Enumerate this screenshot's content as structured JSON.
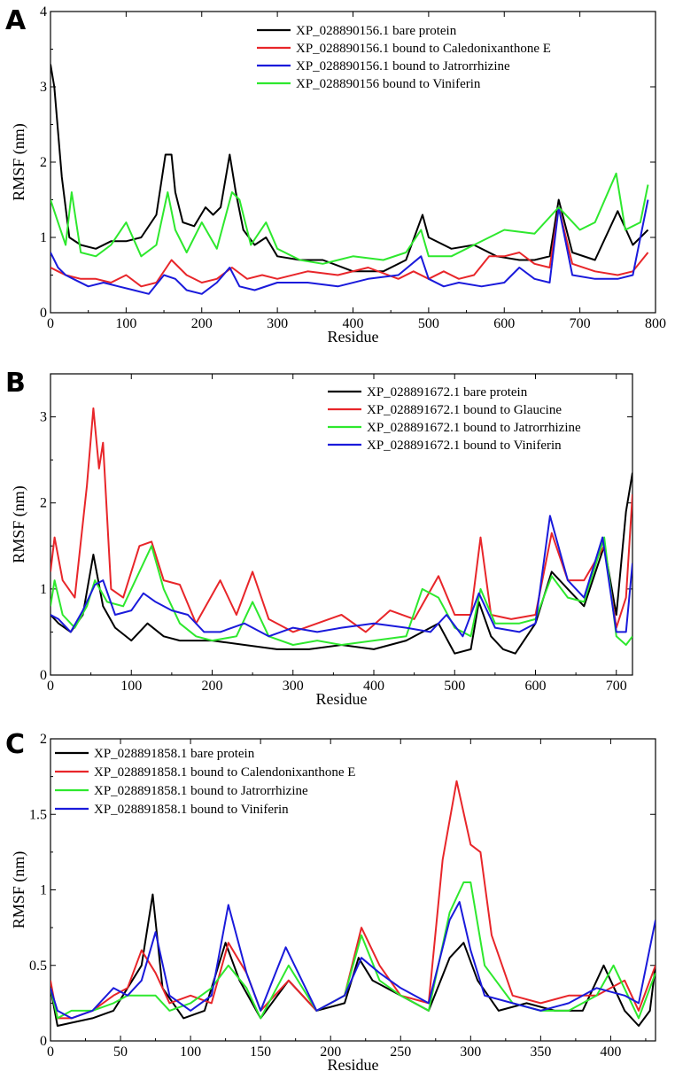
{
  "figure": {
    "x_axis_label": "Residue",
    "y_axis_label": "RMSF (nm)"
  },
  "chart_data": [
    {
      "panel_label": "A",
      "type": "line",
      "title": "",
      "xlabel": "Residue",
      "ylabel": "RMSF (nm)",
      "xlim": [
        0,
        800
      ],
      "ylim": [
        0,
        4
      ],
      "x_ticks": [
        "0",
        "100",
        "200",
        "300",
        "400",
        "500",
        "600",
        "700",
        "800"
      ],
      "y_ticks": [
        "0",
        "1",
        "2",
        "3",
        "4"
      ],
      "x_tick_values": [
        0,
        100,
        200,
        300,
        400,
        500,
        600,
        700,
        800
      ],
      "y_tick_values": [
        0,
        1,
        2,
        3,
        4
      ],
      "legend_position": "top-right",
      "series": [
        {
          "name": "XP_028890156.1 bare protein",
          "color": "#000000",
          "x": [
            0,
            5,
            15,
            25,
            40,
            60,
            80,
            100,
            120,
            140,
            152,
            160,
            165,
            175,
            190,
            205,
            215,
            225,
            237,
            245,
            255,
            270,
            285,
            300,
            330,
            360,
            400,
            440,
            470,
            492,
            500,
            530,
            560,
            590,
            620,
            640,
            660,
            672,
            690,
            720,
            750,
            770,
            790
          ],
          "values": [
            3.3,
            3.0,
            1.8,
            1.0,
            0.9,
            0.85,
            0.95,
            0.95,
            1.0,
            1.3,
            2.1,
            2.1,
            1.6,
            1.2,
            1.15,
            1.4,
            1.3,
            1.4,
            2.1,
            1.6,
            1.1,
            0.9,
            1.0,
            0.75,
            0.7,
            0.7,
            0.55,
            0.55,
            0.7,
            1.3,
            1.0,
            0.85,
            0.9,
            0.75,
            0.7,
            0.7,
            0.75,
            1.5,
            0.8,
            0.7,
            1.35,
            0.9,
            1.1
          ]
        },
        {
          "name": "XP_028890156.1 bound to Caledonixanthone E",
          "color": "#e8262a",
          "x": [
            0,
            10,
            20,
            40,
            60,
            80,
            100,
            120,
            140,
            160,
            180,
            200,
            220,
            240,
            260,
            280,
            300,
            340,
            380,
            420,
            460,
            480,
            500,
            520,
            540,
            560,
            580,
            600,
            620,
            640,
            660,
            672,
            690,
            720,
            750,
            770,
            790
          ],
          "values": [
            0.6,
            0.55,
            0.5,
            0.45,
            0.45,
            0.4,
            0.5,
            0.35,
            0.4,
            0.7,
            0.5,
            0.4,
            0.45,
            0.6,
            0.45,
            0.5,
            0.45,
            0.55,
            0.5,
            0.6,
            0.45,
            0.55,
            0.45,
            0.55,
            0.45,
            0.5,
            0.75,
            0.75,
            0.8,
            0.65,
            0.6,
            1.4,
            0.65,
            0.55,
            0.5,
            0.55,
            0.8
          ]
        },
        {
          "name": "XP_028890156.1 bound to Jatrorrhizine",
          "color": "#1a1adb",
          "x": [
            0,
            10,
            20,
            30,
            50,
            70,
            90,
            110,
            130,
            150,
            165,
            180,
            200,
            220,
            237,
            250,
            270,
            300,
            340,
            380,
            420,
            460,
            490,
            500,
            520,
            540,
            570,
            600,
            620,
            640,
            660,
            672,
            690,
            720,
            750,
            770,
            790
          ],
          "values": [
            0.8,
            0.6,
            0.5,
            0.45,
            0.35,
            0.4,
            0.35,
            0.3,
            0.25,
            0.5,
            0.45,
            0.3,
            0.25,
            0.4,
            0.6,
            0.35,
            0.3,
            0.4,
            0.4,
            0.35,
            0.45,
            0.5,
            0.75,
            0.45,
            0.35,
            0.4,
            0.35,
            0.4,
            0.6,
            0.45,
            0.4,
            1.4,
            0.5,
            0.45,
            0.45,
            0.5,
            1.5
          ]
        },
        {
          "name": "XP_028890156 bound to Viniferin",
          "color": "#2ee82e",
          "x": [
            0,
            10,
            20,
            28,
            40,
            60,
            80,
            100,
            120,
            140,
            155,
            165,
            180,
            200,
            220,
            240,
            250,
            265,
            285,
            300,
            330,
            360,
            400,
            440,
            470,
            490,
            500,
            530,
            560,
            600,
            640,
            672,
            700,
            720,
            748,
            760,
            780,
            790
          ],
          "values": [
            1.5,
            1.2,
            0.9,
            1.6,
            0.8,
            0.75,
            0.9,
            1.2,
            0.75,
            0.9,
            1.6,
            1.1,
            0.8,
            1.2,
            0.85,
            1.6,
            1.5,
            0.9,
            1.2,
            0.85,
            0.7,
            0.65,
            0.75,
            0.7,
            0.8,
            1.1,
            0.75,
            0.75,
            0.9,
            1.1,
            1.05,
            1.4,
            1.1,
            1.2,
            1.85,
            1.1,
            1.2,
            1.7
          ]
        }
      ]
    },
    {
      "panel_label": "B",
      "type": "line",
      "title": "",
      "xlabel": "Residue",
      "ylabel": "RMSF (nm)",
      "xlim": [
        0,
        720
      ],
      "ylim": [
        0,
        3.5
      ],
      "x_ticks": [
        "0",
        "100",
        "200",
        "300",
        "400",
        "500",
        "600",
        "700"
      ],
      "y_ticks": [
        "0",
        "1",
        "2",
        "3"
      ],
      "x_tick_values": [
        0,
        100,
        200,
        300,
        400,
        500,
        600,
        700
      ],
      "y_tick_values": [
        0,
        1,
        2,
        3
      ],
      "legend_position": "top-right",
      "series": [
        {
          "name": "XP_028891672.1 bare protein",
          "color": "#000000",
          "x": [
            0,
            10,
            25,
            40,
            53,
            65,
            80,
            100,
            120,
            140,
            160,
            200,
            240,
            280,
            320,
            360,
            400,
            440,
            480,
            500,
            520,
            530,
            545,
            560,
            575,
            600,
            620,
            640,
            660,
            685,
            700,
            712,
            720
          ],
          "values": [
            0.7,
            0.6,
            0.5,
            0.7,
            1.4,
            0.8,
            0.55,
            0.4,
            0.6,
            0.45,
            0.4,
            0.4,
            0.35,
            0.3,
            0.3,
            0.35,
            0.3,
            0.4,
            0.6,
            0.25,
            0.3,
            0.85,
            0.45,
            0.3,
            0.25,
            0.6,
            1.2,
            1.0,
            0.8,
            1.5,
            0.7,
            1.9,
            2.35
          ]
        },
        {
          "name": "XP_028891672.1 bound to Glaucine",
          "color": "#e8262a",
          "x": [
            0,
            5,
            15,
            30,
            45,
            53,
            60,
            65,
            75,
            90,
            110,
            125,
            140,
            160,
            180,
            210,
            230,
            250,
            270,
            300,
            330,
            360,
            390,
            420,
            450,
            480,
            500,
            520,
            532,
            545,
            570,
            600,
            620,
            640,
            660,
            685,
            700,
            712,
            720
          ],
          "values": [
            1.2,
            1.6,
            1.1,
            0.9,
            2.2,
            3.1,
            2.4,
            2.7,
            1.0,
            0.9,
            1.5,
            1.55,
            1.1,
            1.05,
            0.6,
            1.1,
            0.7,
            1.2,
            0.65,
            0.5,
            0.6,
            0.7,
            0.5,
            0.75,
            0.65,
            1.15,
            0.7,
            0.7,
            1.6,
            0.7,
            0.65,
            0.7,
            1.65,
            1.1,
            1.1,
            1.5,
            0.55,
            0.9,
            2.1
          ]
        },
        {
          "name": "XP_028891672.1 bound to Jatrorrhizine",
          "color": "#2ee82e",
          "x": [
            0,
            5,
            15,
            30,
            45,
            55,
            70,
            90,
            110,
            125,
            140,
            160,
            180,
            200,
            230,
            250,
            270,
            300,
            330,
            360,
            400,
            440,
            460,
            480,
            500,
            520,
            532,
            550,
            580,
            600,
            620,
            640,
            660,
            685,
            700,
            712,
            720
          ],
          "values": [
            0.8,
            1.1,
            0.7,
            0.55,
            0.8,
            1.1,
            0.85,
            0.8,
            1.2,
            1.5,
            1.0,
            0.6,
            0.45,
            0.4,
            0.45,
            0.85,
            0.45,
            0.35,
            0.4,
            0.35,
            0.4,
            0.45,
            1.0,
            0.9,
            0.55,
            0.45,
            1.0,
            0.6,
            0.6,
            0.65,
            1.15,
            0.9,
            0.85,
            1.6,
            0.45,
            0.35,
            0.45
          ]
        },
        {
          "name": "XP_028891672.1 bound to Viniferin",
          "color": "#1a1adb",
          "x": [
            0,
            10,
            25,
            40,
            55,
            65,
            80,
            100,
            115,
            130,
            150,
            170,
            190,
            210,
            240,
            270,
            300,
            330,
            360,
            400,
            440,
            470,
            490,
            510,
            530,
            550,
            580,
            600,
            618,
            640,
            660,
            683,
            700,
            712,
            720
          ],
          "values": [
            0.7,
            0.65,
            0.5,
            0.75,
            1.05,
            1.1,
            0.7,
            0.75,
            0.95,
            0.85,
            0.75,
            0.7,
            0.5,
            0.5,
            0.6,
            0.45,
            0.55,
            0.5,
            0.55,
            0.6,
            0.55,
            0.5,
            0.7,
            0.45,
            0.95,
            0.55,
            0.5,
            0.6,
            1.85,
            1.1,
            0.9,
            1.6,
            0.5,
            0.5,
            1.3
          ]
        }
      ]
    },
    {
      "panel_label": "C",
      "type": "line",
      "title": "",
      "xlabel": "Residue",
      "ylabel": "RMSF (nm)",
      "xlim": [
        0,
        432
      ],
      "ylim": [
        0,
        2
      ],
      "x_ticks": [
        "0",
        "50",
        "100",
        "150",
        "200",
        "250",
        "300",
        "350",
        "400"
      ],
      "y_ticks": [
        "0",
        "0.5",
        "1",
        "1.5",
        "2"
      ],
      "x_tick_values": [
        0,
        50,
        100,
        150,
        200,
        250,
        300,
        350,
        400
      ],
      "y_tick_values": [
        0,
        0.5,
        1,
        1.5,
        2
      ],
      "legend_position": "top-left",
      "series": [
        {
          "name": "XP_028891858.1 bare protein",
          "color": "#000000",
          "x": [
            0,
            5,
            15,
            30,
            45,
            55,
            65,
            73,
            80,
            95,
            110,
            125,
            135,
            150,
            170,
            190,
            210,
            220,
            230,
            250,
            270,
            285,
            295,
            305,
            320,
            340,
            360,
            380,
            395,
            410,
            420,
            428,
            432
          ],
          "values": [
            0.35,
            0.1,
            0.12,
            0.15,
            0.2,
            0.35,
            0.5,
            0.97,
            0.35,
            0.15,
            0.2,
            0.65,
            0.4,
            0.15,
            0.4,
            0.2,
            0.25,
            0.55,
            0.4,
            0.3,
            0.2,
            0.55,
            0.65,
            0.4,
            0.2,
            0.25,
            0.2,
            0.2,
            0.5,
            0.2,
            0.1,
            0.2,
            0.5
          ]
        },
        {
          "name": "XP_028891858.1 bound to Calendonixanthone E",
          "color": "#e8262a",
          "x": [
            0,
            5,
            15,
            30,
            45,
            55,
            65,
            75,
            85,
            100,
            115,
            127,
            140,
            150,
            170,
            190,
            210,
            222,
            235,
            250,
            270,
            280,
            290,
            300,
            307,
            315,
            330,
            350,
            370,
            390,
            410,
            420,
            432
          ],
          "values": [
            0.4,
            0.15,
            0.15,
            0.2,
            0.3,
            0.35,
            0.6,
            0.45,
            0.25,
            0.3,
            0.25,
            0.65,
            0.45,
            0.2,
            0.4,
            0.2,
            0.3,
            0.75,
            0.5,
            0.3,
            0.25,
            1.2,
            1.72,
            1.3,
            1.25,
            0.7,
            0.3,
            0.25,
            0.3,
            0.3,
            0.4,
            0.2,
            0.5
          ]
        },
        {
          "name": "XP_028891858.1 bound to Jatrorrhizine",
          "color": "#2ee82e",
          "x": [
            0,
            5,
            15,
            30,
            45,
            55,
            65,
            75,
            85,
            100,
            115,
            127,
            140,
            150,
            170,
            190,
            210,
            222,
            235,
            250,
            270,
            285,
            295,
            300,
            310,
            330,
            350,
            370,
            390,
            402,
            420,
            432
          ],
          "values": [
            0.35,
            0.15,
            0.2,
            0.2,
            0.25,
            0.3,
            0.3,
            0.3,
            0.2,
            0.25,
            0.35,
            0.5,
            0.35,
            0.15,
            0.5,
            0.2,
            0.3,
            0.7,
            0.4,
            0.3,
            0.2,
            0.85,
            1.05,
            1.05,
            0.5,
            0.25,
            0.2,
            0.2,
            0.3,
            0.5,
            0.15,
            0.45
          ]
        },
        {
          "name": "XP_028891858.1 bound to Viniferin",
          "color": "#1a1adb",
          "x": [
            0,
            5,
            15,
            30,
            45,
            55,
            65,
            75,
            85,
            100,
            115,
            127,
            140,
            150,
            168,
            190,
            210,
            222,
            235,
            250,
            270,
            285,
            292,
            300,
            310,
            330,
            350,
            370,
            390,
            410,
            420,
            432
          ],
          "values": [
            0.35,
            0.2,
            0.15,
            0.2,
            0.35,
            0.3,
            0.4,
            0.72,
            0.3,
            0.2,
            0.3,
            0.9,
            0.45,
            0.2,
            0.62,
            0.2,
            0.3,
            0.55,
            0.45,
            0.35,
            0.25,
            0.8,
            0.92,
            0.6,
            0.3,
            0.25,
            0.2,
            0.25,
            0.35,
            0.3,
            0.25,
            0.8
          ]
        }
      ]
    }
  ]
}
